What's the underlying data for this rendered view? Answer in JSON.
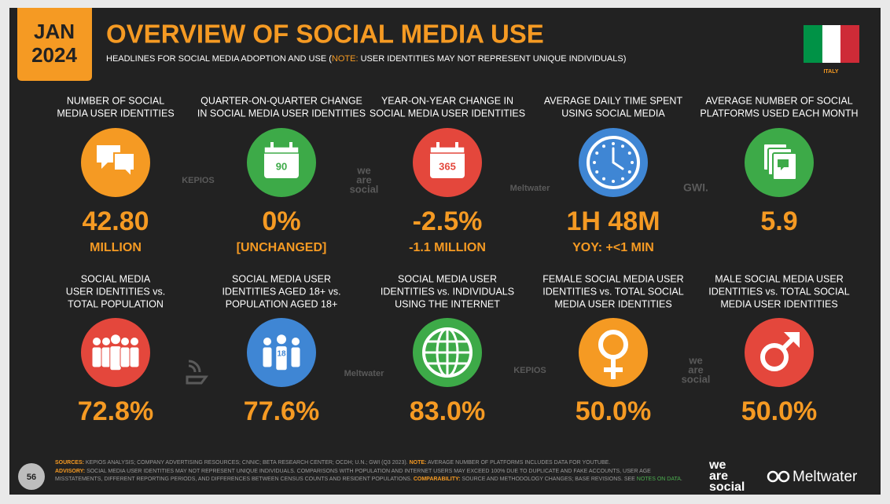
{
  "header": {
    "date_month": "JAN",
    "date_year": "2024",
    "title": "OVERVIEW OF SOCIAL MEDIA USE",
    "subtitle_before": "HEADLINES FOR SOCIAL MEDIA ADOPTION AND USE (",
    "subtitle_note": "NOTE:",
    "subtitle_after": " USER IDENTITIES MAY NOT REPRESENT UNIQUE INDIVIDUALS)",
    "country": "ITALY"
  },
  "stats": [
    {
      "label": [
        "NUMBER OF SOCIAL",
        "MEDIA USER IDENTITIES"
      ],
      "icon": "bubbles",
      "color": "#f59a23",
      "value": "42.80",
      "sub": "MILLION"
    },
    {
      "label": [
        "QUARTER-ON-QUARTER CHANGE",
        "IN SOCIAL MEDIA USER IDENTITIES"
      ],
      "icon": "calendar",
      "icon_text": "90",
      "color": "#3daa48",
      "value": "0%",
      "sub": "[UNCHANGED]"
    },
    {
      "label": [
        "YEAR-ON-YEAR CHANGE IN",
        "SOCIAL MEDIA USER IDENTITIES"
      ],
      "icon": "calendar",
      "icon_text": "365",
      "color": "#e4473c",
      "value": "-2.5%",
      "sub": "-1.1 MILLION"
    },
    {
      "label": [
        "AVERAGE DAILY TIME SPENT",
        "USING SOCIAL MEDIA"
      ],
      "icon": "clock",
      "color": "#3f86d4",
      "value": "1H 48M",
      "sub": "YOY: +<1 MIN"
    },
    {
      "label": [
        "AVERAGE NUMBER OF SOCIAL",
        "PLATFORMS USED EACH MONTH"
      ],
      "icon": "cards",
      "color": "#3daa48",
      "value": "5.9"
    },
    {
      "label": [
        "SOCIAL MEDIA",
        "USER IDENTITIES vs.",
        "TOTAL POPULATION"
      ],
      "icon": "people",
      "color": "#e4473c",
      "value": "72.8%"
    },
    {
      "label": [
        "SOCIAL MEDIA USER",
        "IDENTITIES AGED 18+ vs.",
        "POPULATION AGED 18+"
      ],
      "icon": "adults",
      "icon_text": "18",
      "color": "#3f86d4",
      "value": "77.6%"
    },
    {
      "label": [
        "SOCIAL MEDIA USER",
        "IDENTITIES vs. INDIVIDUALS",
        "USING THE INTERNET"
      ],
      "icon": "globe",
      "color": "#3daa48",
      "value": "83.0%"
    },
    {
      "label": [
        "FEMALE SOCIAL MEDIA USER",
        "IDENTITIES vs. TOTAL SOCIAL",
        "MEDIA USER IDENTITIES"
      ],
      "icon": "female",
      "color": "#f59a23",
      "value": "50.0%"
    },
    {
      "label": [
        "MALE SOCIAL MEDIA USER",
        "IDENTITIES vs. TOTAL SOCIAL",
        "MEDIA USER IDENTITIES"
      ],
      "icon": "male",
      "color": "#e4473c",
      "value": "50.0%"
    }
  ],
  "source_logos": [
    {
      "text": [
        "KEPIOS"
      ]
    },
    {
      "text": [
        "we",
        "are",
        "social"
      ]
    },
    {
      "text": [
        "Meltwater"
      ]
    },
    {
      "text": [
        "GWI."
      ]
    },
    {
      "text": [
        "Meltwater"
      ]
    },
    {
      "text": [
        "KEPIOS"
      ]
    },
    {
      "text": [
        "we",
        "are",
        "social"
      ]
    }
  ],
  "footer": {
    "page": "56",
    "segments": [
      {
        "label": "SOURCES:",
        "text": " KEPIOS ANALYSIS; COMPANY ADVERTISING RESOURCES; CNNIC; BETA RESEARCH CENTER; OCDH; U.N.; GWI (Q3 2023). "
      },
      {
        "label": "NOTE:",
        "text": " AVERAGE NUMBER OF PLATFORMS INCLUDES DATA FOR YOUTUBE."
      },
      {
        "label": "ADVISORY:",
        "text": " SOCIAL MEDIA USER IDENTITIES MAY NOT REPRESENT UNIQUE INDIVIDUALS. COMPARISONS WITH POPULATION AND INTERNET USERS MAY EXCEED 100% DUE TO DUPLICATE AND FAKE ACCOUNTS, USER AGE MISSTATEMENTS, DIFFERENT REPORTING PERIODS, AND DIFFERENCES BETWEEN CENSUS COUNTS AND RESIDENT POPULATIONS. "
      },
      {
        "label": "COMPARABILITY:",
        "text": " SOURCE AND METHODOLOGY CHANGES; BASE REVISIONS. SEE "
      }
    ],
    "link": "NOTES ON DATA",
    "end": ".",
    "brand_lines": [
      "we",
      "are",
      "social"
    ],
    "brand_2": "Meltwater"
  }
}
